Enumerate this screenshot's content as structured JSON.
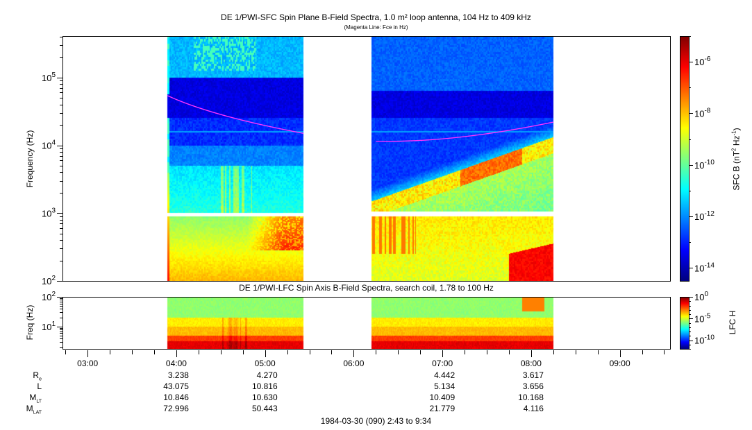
{
  "chart_data": [
    {
      "type": "heatmap",
      "title": "DE 1/PWI-SFC  Spin Plane B-Field Spectra, 1.0 m² loop antenna, 104 Hz to 409 kHz",
      "subtitle": "(Magenta Line: Fce in Hz)",
      "ylabel": "Frequency (Hz)",
      "yscale": "log",
      "ylim": [
        100,
        409000
      ],
      "yticks": [
        {
          "v": 100,
          "e": "2"
        },
        {
          "v": 1000,
          "e": "3"
        },
        {
          "v": 10000,
          "e": "4"
        },
        {
          "v": 100000,
          "e": "5"
        }
      ],
      "xlim": [
        "02:43",
        "09:34"
      ],
      "data_coverage": [
        [
          "03:54",
          "05:26"
        ],
        [
          "06:12",
          "08:15"
        ]
      ],
      "colorbar": {
        "label": "SFC B (nT² Hz⁻¹)",
        "label_main": "SFC B (nT",
        "label_mid": " Hz",
        "label_end": ")",
        "scale": "log",
        "range_exp": [
          -14.5,
          -5
        ],
        "ticks_exp": [
          -6,
          -8,
          -10,
          -12,
          -14
        ]
      },
      "fce_line": {
        "color": "#ff33ff",
        "points": [
          [
            "03:54",
            54000
          ],
          [
            "05:26",
            15000
          ],
          [
            "06:15",
            11500
          ],
          [
            "07:00",
            11500
          ],
          [
            "08:15",
            22000
          ]
        ]
      },
      "colormap": "jet"
    },
    {
      "type": "heatmap",
      "title": "DE 1/PWI-LFC  Spin Axis B-Field Spectra, search coil, 1.78 to 100 Hz",
      "ylabel": "Freq (Hz)",
      "yscale": "log",
      "ylim": [
        1.78,
        100
      ],
      "yticks": [
        {
          "v": 10,
          "e": "1"
        },
        {
          "v": 100,
          "e": "2"
        }
      ],
      "xlim": [
        "02:43",
        "09:34"
      ],
      "data_coverage": [
        [
          "03:54",
          "05:26"
        ],
        [
          "06:12",
          "08:15"
        ]
      ],
      "colorbar": {
        "label": "LFC H",
        "scale": "log",
        "range_exp": [
          -12,
          0
        ],
        "ticks_exp": [
          0,
          -5,
          -10
        ]
      },
      "colormap": "jet"
    }
  ],
  "time_axis": {
    "ticks": [
      "03:00",
      "04:00",
      "05:00",
      "06:00",
      "07:00",
      "08:00",
      "09:00"
    ]
  },
  "ephemeris": {
    "columns": [
      "04:00",
      "05:00",
      "07:00",
      "08:00"
    ],
    "rows": [
      {
        "label": "R",
        "sub": "e",
        "values": [
          "3.238",
          "4.270",
          "4.442",
          "3.617"
        ]
      },
      {
        "label": "L",
        "sub": "",
        "values": [
          "43.075",
          "10.816",
          "5.134",
          "3.656"
        ]
      },
      {
        "label": "M",
        "sub": "LT",
        "values": [
          "10.846",
          "10.630",
          "10.409",
          "10.168"
        ]
      },
      {
        "label": "M",
        "sub": "LAT",
        "values": [
          "72.996",
          "50.443",
          "21.779",
          "4.116"
        ]
      }
    ]
  },
  "footer": "1984-03-30 (090) 2:43 to 9:34"
}
